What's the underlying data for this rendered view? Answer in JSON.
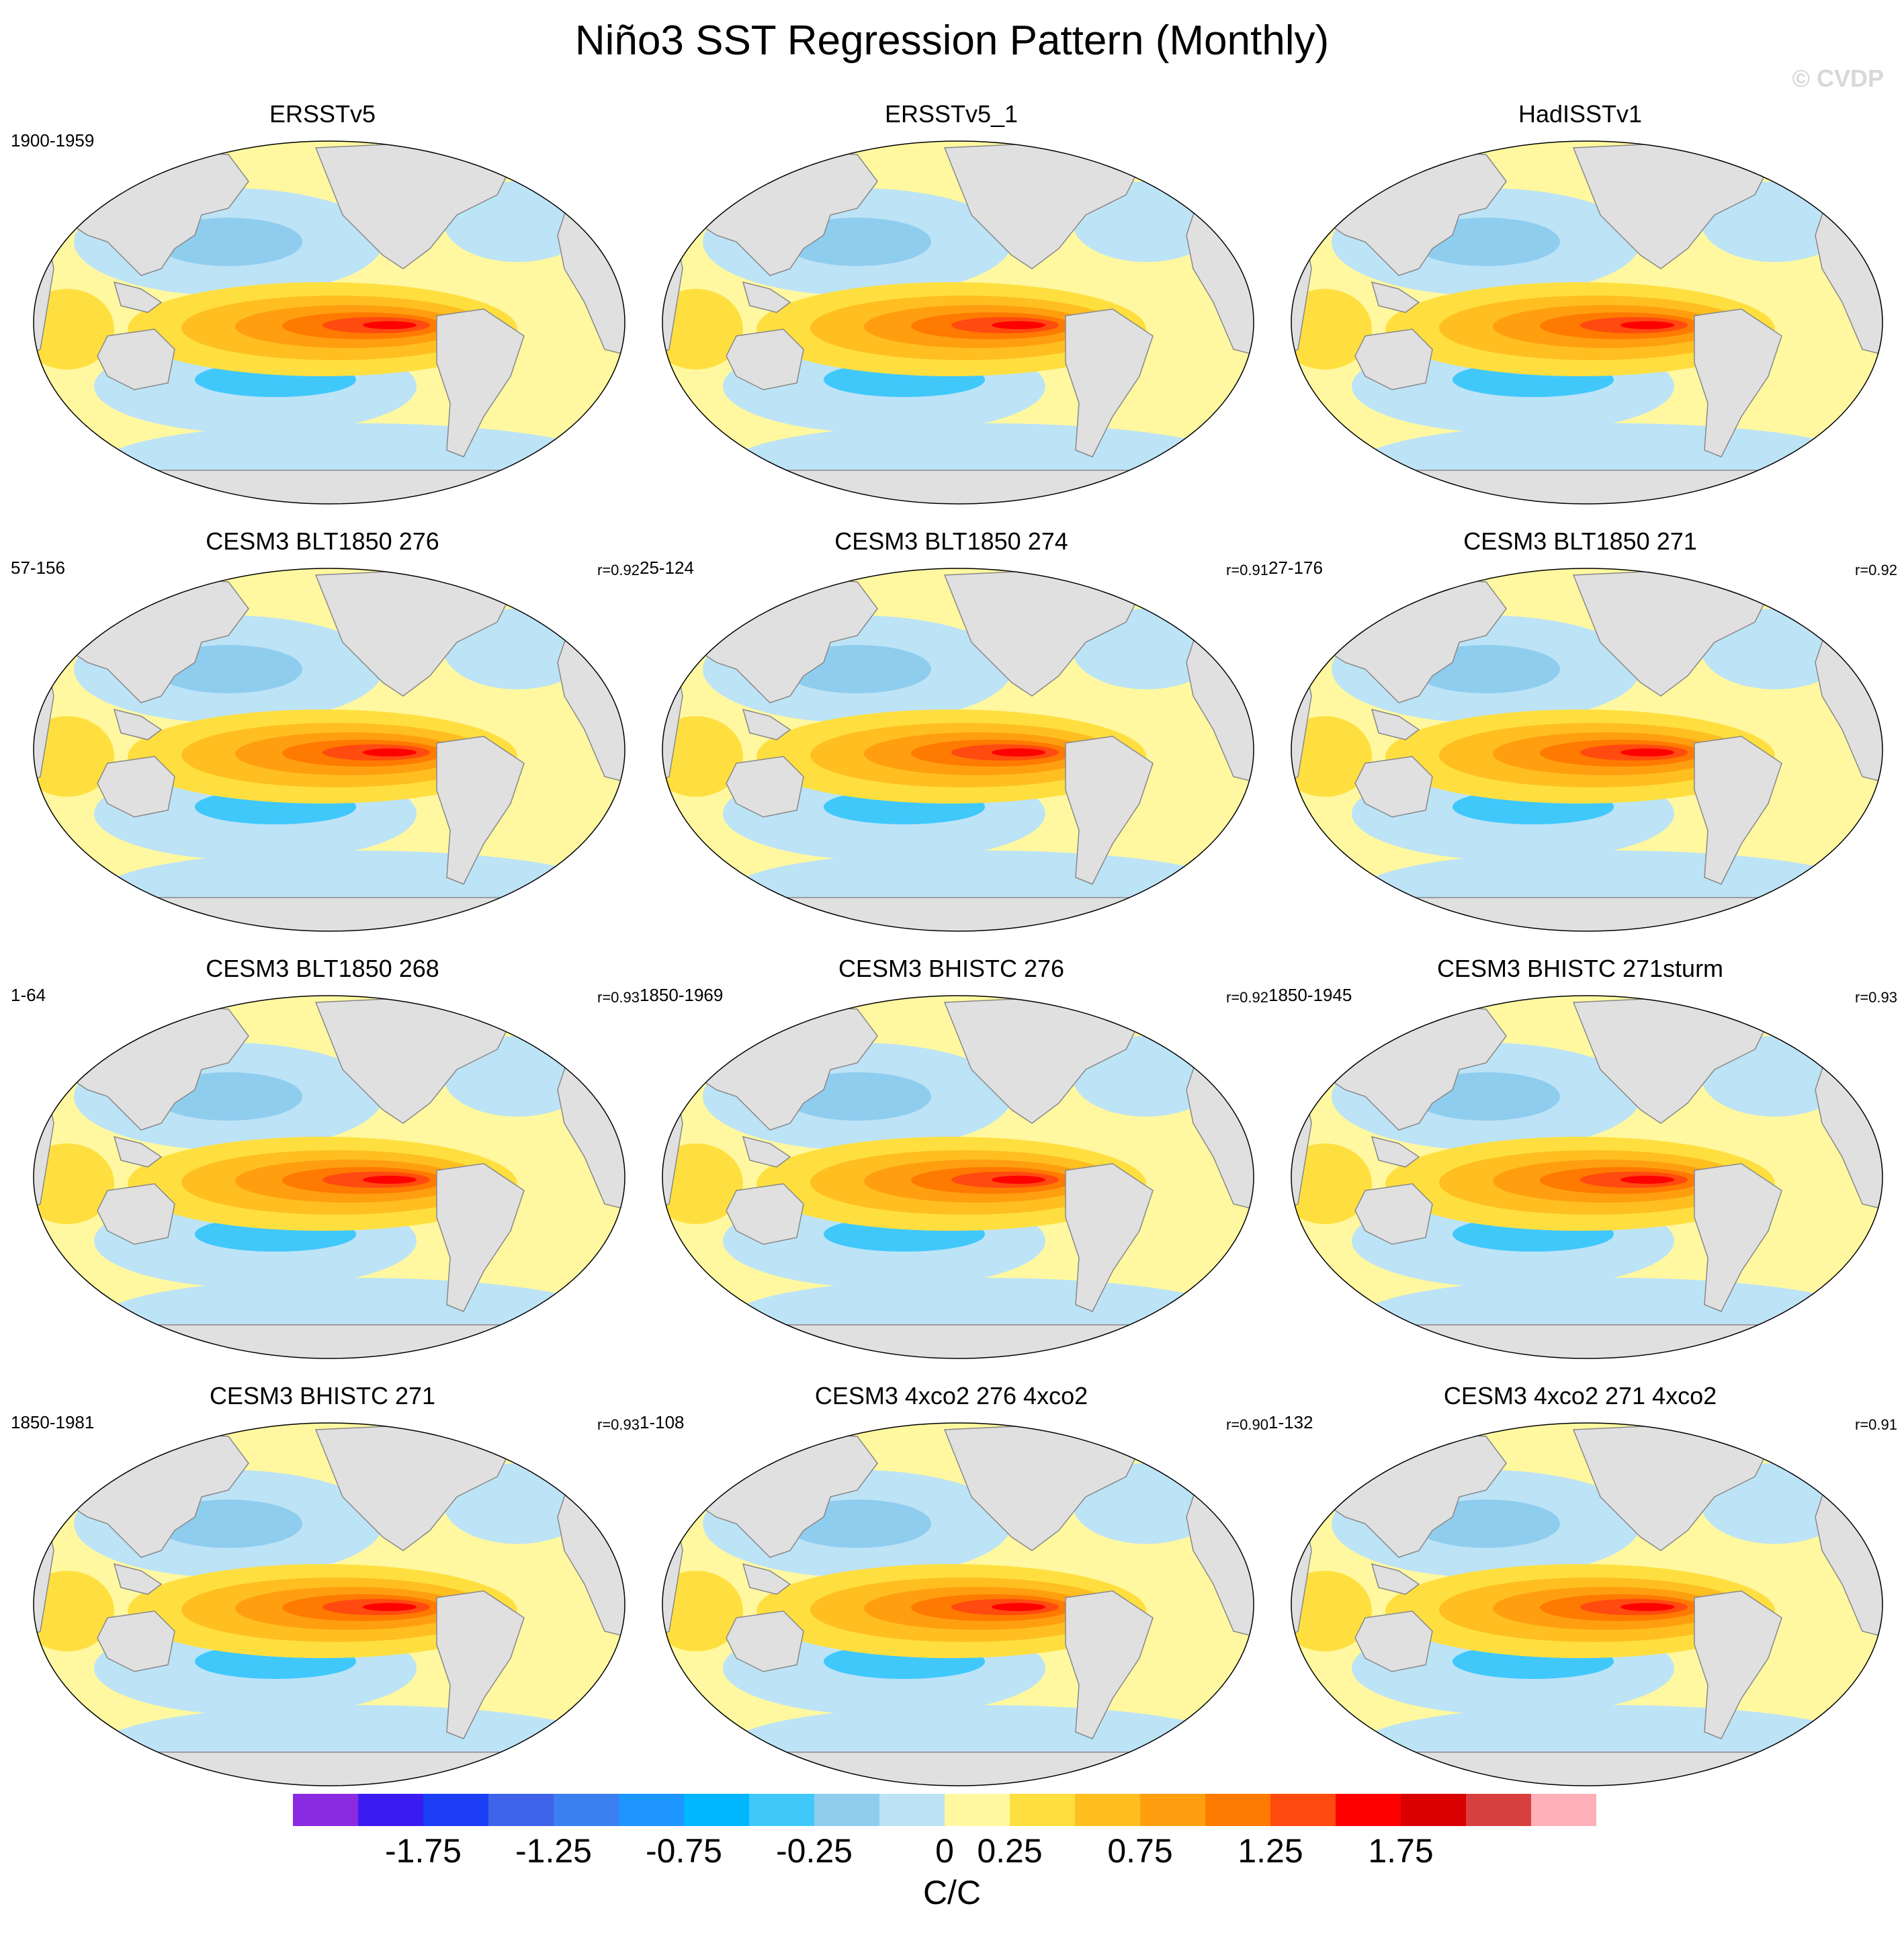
{
  "title": "Niño3 SST Regression Pattern (Monthly)",
  "copyright": "© CVDP",
  "panels": [
    {
      "title": "ERSSTv5",
      "years": "1900-1959",
      "r": ""
    },
    {
      "title": "ERSSTv5_1",
      "years": "",
      "r": ""
    },
    {
      "title": "HadISSTv1",
      "years": "",
      "r": ""
    },
    {
      "title": "CESM3 BLT1850 276",
      "years": "57-156",
      "r": "r=0.92"
    },
    {
      "title": "CESM3 BLT1850 274",
      "years": "25-124",
      "r": "r=0.91"
    },
    {
      "title": "CESM3 BLT1850 271",
      "years": "27-176",
      "r": "r=0.92"
    },
    {
      "title": "CESM3 BLT1850 268",
      "years": "1-64",
      "r": "r=0.93"
    },
    {
      "title": "CESM3 BHISTC 276",
      "years": "1850-1969",
      "r": "r=0.92"
    },
    {
      "title": "CESM3 BHISTC 271sturm",
      "years": "1850-1945",
      "r": "r=0.93"
    },
    {
      "title": "CESM3 BHISTC 271",
      "years": "1850-1981",
      "r": "r=0.93"
    },
    {
      "title": "CESM3 4xco2 276 4xco2",
      "years": "1-108",
      "r": "r=0.90"
    },
    {
      "title": "CESM3 4xco2 271 4xco2",
      "years": "1-132",
      "r": "r=0.91"
    }
  ],
  "colorbar": {
    "colors": [
      "#8a2be2",
      "#3a1cf0",
      "#1c3ef5",
      "#3e62e8",
      "#3b7ff0",
      "#1e96ff",
      "#00b7ff",
      "#40c8fb",
      "#8fcdef",
      "#bde3f6",
      "#fff8a0",
      "#ffdf40",
      "#ffbf20",
      "#ff9f10",
      "#ff7a00",
      "#ff4a10",
      "#ff0000",
      "#d80000",
      "#d84040",
      "#ffb0b8"
    ],
    "tick_labels": [
      "-1.75",
      "-1.25",
      "-0.75",
      "-0.25",
      "0",
      "0.25",
      "0.75",
      "1.25",
      "1.75"
    ],
    "units": "C/C"
  }
}
